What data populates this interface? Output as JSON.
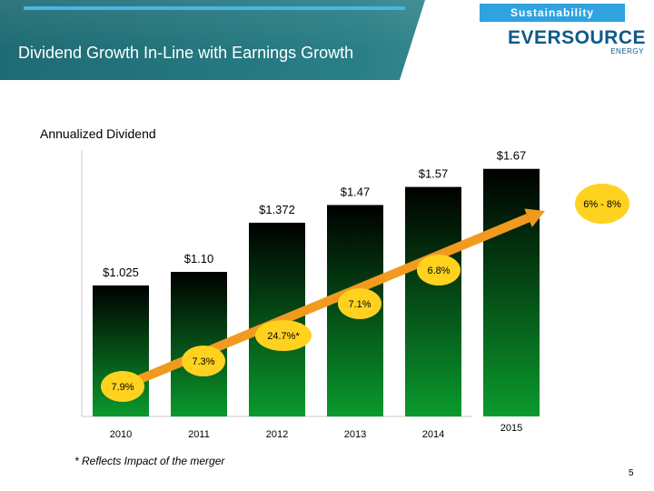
{
  "header": {
    "tag": "Sustainability",
    "title": "Dividend Growth In-Line with Earnings Growth",
    "logo_text": "EVERSOURCE",
    "logo_sub": "ENERGY"
  },
  "colors": {
    "bar_top": "#000000",
    "bar_bottom": "#0a9a2d",
    "arrow": "#f29a1f",
    "bubble": "#ffd21f"
  },
  "chart_data": {
    "type": "bar",
    "title": "Annualized Dividend",
    "categories": [
      "2010",
      "2011",
      "2012",
      "2013",
      "2014",
      "2015"
    ],
    "values": [
      1.025,
      1.1,
      1.372,
      1.47,
      1.57,
      1.67
    ],
    "value_labels": [
      "$1.025",
      "$1.10",
      "$1.372",
      "$1.47",
      "$1.57",
      "$1.67"
    ],
    "ylim": [
      0.3,
      1.9
    ],
    "growth_labels": [
      "7.9%",
      "7.3%",
      "24.7%*",
      "7.1%",
      "6.8%",
      "6% - 8%"
    ],
    "grid": false,
    "legend": "none"
  },
  "footnote": "* Reflects Impact of the merger",
  "page_number": "5"
}
